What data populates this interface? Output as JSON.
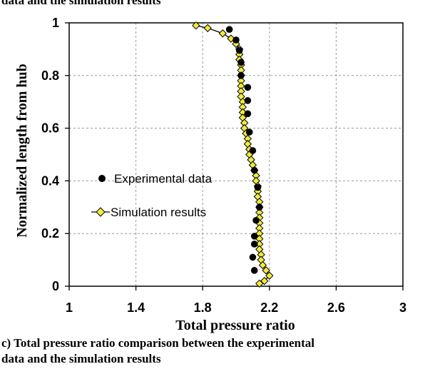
{
  "figure": {
    "top_cut_text": "data and the simulation results",
    "caption_lines": [
      "c) Total pressure ratio comparison between the experimental",
      "data and the simulation results"
    ]
  },
  "colors": {
    "experimental": "#000000",
    "simulation_fill": "#f2ea3c",
    "simulation_stroke": "#000000",
    "grid": "#9a9a9a"
  },
  "chart_data": {
    "type": "scatter",
    "title": "",
    "xlabel": "Total pressure ratio",
    "ylabel": "Normalized length from hub",
    "xlim": [
      1,
      3
    ],
    "ylim": [
      0,
      1
    ],
    "xticks": [
      "1",
      "1.4",
      "1.8",
      "2.2",
      "2.6",
      "3"
    ],
    "yticks": [
      "0",
      "0.2",
      "0.4",
      "0.6",
      "0.8",
      "1"
    ],
    "grid": "dashed",
    "legend": "center-left",
    "series": [
      {
        "name": "Experimental data",
        "marker": "circle",
        "line": false,
        "points": [
          [
            1.96,
            0.975
          ],
          [
            2.0,
            0.935
          ],
          [
            2.02,
            0.895
          ],
          [
            2.03,
            0.85
          ],
          [
            2.03,
            0.8
          ],
          [
            2.07,
            0.755
          ],
          [
            2.07,
            0.705
          ],
          [
            2.07,
            0.655
          ],
          [
            2.08,
            0.585
          ],
          [
            2.1,
            0.515
          ],
          [
            2.11,
            0.44
          ],
          [
            2.13,
            0.375
          ],
          [
            2.14,
            0.3
          ],
          [
            2.12,
            0.25
          ],
          [
            2.11,
            0.19
          ],
          [
            2.11,
            0.16
          ],
          [
            2.1,
            0.11
          ],
          [
            2.11,
            0.06
          ]
        ]
      },
      {
        "name": "Simulation results",
        "marker": "diamond",
        "line": true,
        "points": [
          [
            1.76,
            0.99
          ],
          [
            1.83,
            0.98
          ],
          [
            1.92,
            0.96
          ],
          [
            1.97,
            0.94
          ],
          [
            2.0,
            0.92
          ],
          [
            2.02,
            0.9
          ],
          [
            2.02,
            0.88
          ],
          [
            2.02,
            0.86
          ],
          [
            2.03,
            0.84
          ],
          [
            2.03,
            0.82
          ],
          [
            2.03,
            0.8
          ],
          [
            2.03,
            0.78
          ],
          [
            2.03,
            0.76
          ],
          [
            2.03,
            0.74
          ],
          [
            2.03,
            0.72
          ],
          [
            2.04,
            0.7
          ],
          [
            2.04,
            0.68
          ],
          [
            2.04,
            0.66
          ],
          [
            2.04,
            0.64
          ],
          [
            2.05,
            0.62
          ],
          [
            2.05,
            0.6
          ],
          [
            2.06,
            0.58
          ],
          [
            2.07,
            0.56
          ],
          [
            2.07,
            0.54
          ],
          [
            2.08,
            0.52
          ],
          [
            2.08,
            0.5
          ],
          [
            2.09,
            0.48
          ],
          [
            2.1,
            0.46
          ],
          [
            2.11,
            0.44
          ],
          [
            2.12,
            0.42
          ],
          [
            2.12,
            0.4
          ],
          [
            2.13,
            0.38
          ],
          [
            2.13,
            0.36
          ],
          [
            2.13,
            0.34
          ],
          [
            2.14,
            0.32
          ],
          [
            2.14,
            0.3
          ],
          [
            2.14,
            0.28
          ],
          [
            2.14,
            0.26
          ],
          [
            2.14,
            0.24
          ],
          [
            2.14,
            0.22
          ],
          [
            2.14,
            0.2
          ],
          [
            2.14,
            0.18
          ],
          [
            2.14,
            0.16
          ],
          [
            2.14,
            0.14
          ],
          [
            2.15,
            0.12
          ],
          [
            2.15,
            0.1
          ],
          [
            2.16,
            0.08
          ],
          [
            2.18,
            0.06
          ],
          [
            2.2,
            0.04
          ],
          [
            2.17,
            0.02
          ],
          [
            2.14,
            0.01
          ]
        ]
      }
    ]
  }
}
